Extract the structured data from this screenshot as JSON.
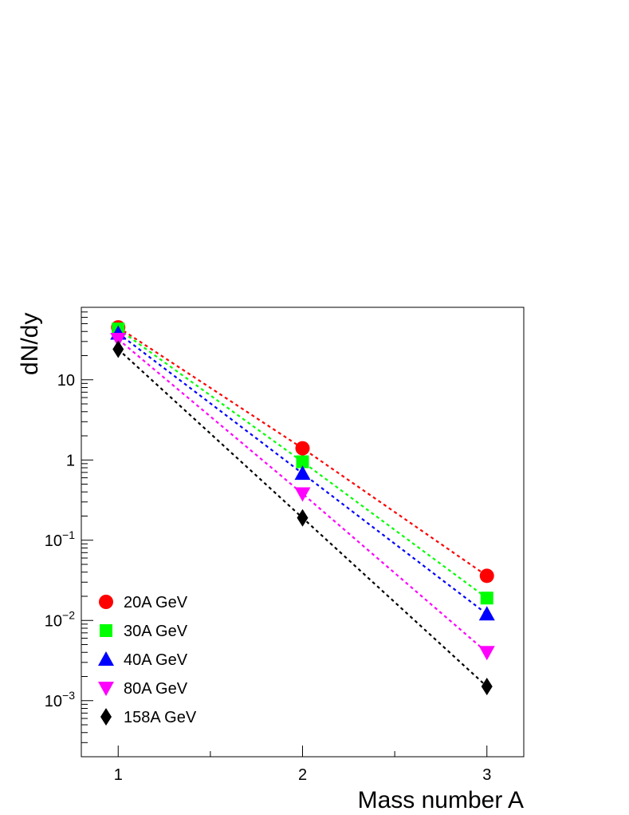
{
  "chart_data": {
    "type": "scatter",
    "title": "",
    "xlabel": "Mass number A",
    "ylabel": "dN/dy",
    "xlim": [
      0.8,
      3.2
    ],
    "ylim": [
      0.0002,
      80
    ],
    "yscale": "log",
    "grid": false,
    "legend_position": "bottom-left",
    "x_ticks": [
      1,
      2,
      3
    ],
    "x_tick_labels": [
      "1",
      "2",
      "3"
    ],
    "y_ticks": [
      0.001,
      0.01,
      0.1,
      1,
      10
    ],
    "y_tick_labels": [
      {
        "base": "10",
        "exp": "−3"
      },
      {
        "base": "10",
        "exp": "−2"
      },
      {
        "base": "10",
        "exp": "−1"
      },
      {
        "base": "1",
        "exp": ""
      },
      {
        "base": "10",
        "exp": ""
      }
    ],
    "series": [
      {
        "name": "20A GeV",
        "color": "#ff0000",
        "marker": "circle",
        "x": [
          1,
          2,
          3
        ],
        "y": [
          45,
          1.4,
          0.036
        ]
      },
      {
        "name": "30A GeV",
        "color": "#00ff00",
        "marker": "square",
        "x": [
          1,
          2,
          3
        ],
        "y": [
          43,
          0.95,
          0.019
        ]
      },
      {
        "name": "40A GeV",
        "color": "#0000ff",
        "marker": "triangle-up",
        "x": [
          1,
          2,
          3
        ],
        "y": [
          38,
          0.68,
          0.012
        ]
      },
      {
        "name": "80A GeV",
        "color": "#ff00ff",
        "marker": "triangle-down",
        "x": [
          1,
          2,
          3
        ],
        "y": [
          32,
          0.38,
          0.004
        ]
      },
      {
        "name": "158A GeV",
        "color": "#000000",
        "marker": "diamond",
        "x": [
          1,
          2,
          3
        ],
        "y": [
          24,
          0.19,
          0.0015
        ]
      }
    ]
  }
}
